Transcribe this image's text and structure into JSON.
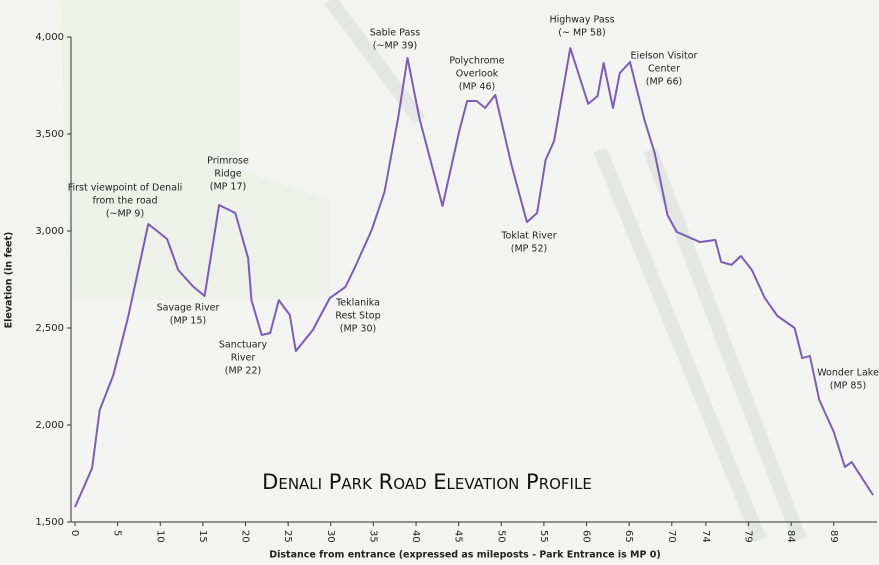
{
  "chart_data": {
    "type": "line",
    "title": "Denali Park Road Elevation Profile",
    "x_label": "Distance from entrance (expressed as mileposts - Park Entrance is MP 0)",
    "y_label": "Elevation (in feet)",
    "color": "#7b5cb8",
    "x": [
      0,
      2.0,
      2.9,
      4.5,
      6.2,
      8.6,
      10.8,
      12.1,
      13.8,
      15.2,
      16.9,
      18.8,
      20.3,
      20.7,
      21.9,
      22.9,
      23.9,
      25.2,
      25.9,
      27.9,
      29.9,
      31.7,
      32.8,
      34.8,
      36.3,
      37.9,
      39.0,
      40.4,
      43.1,
      45.1,
      46.0,
      47.1,
      48.1,
      49.3,
      51.2,
      53.0,
      54.2,
      55.2,
      56.2,
      58.1,
      60.2,
      61.3,
      62.0,
      63.1,
      63.9,
      65.1,
      66.8,
      68.0,
      69.5,
      70.6,
      73.3,
      75.1,
      75.8,
      77.0,
      78.1,
      79.4,
      80.9,
      82.4,
      84.4,
      85.3,
      86.2,
      87.3,
      89.0,
      90.3,
      91.1,
      93.6
    ],
    "values": [
      1577,
      1778,
      2077,
      2258,
      2552,
      3036,
      2959,
      2799,
      2716,
      2665,
      3134,
      3093,
      2861,
      2644,
      2464,
      2474,
      2644,
      2567,
      2381,
      2490,
      2655,
      2711,
      2809,
      3005,
      3201,
      3582,
      3892,
      3582,
      3129,
      3521,
      3670,
      3670,
      3634,
      3701,
      3340,
      3046,
      3093,
      3366,
      3464,
      3943,
      3655,
      3696,
      3866,
      3634,
      3814,
      3871,
      3572,
      3402,
      3082,
      2995,
      2943,
      2954,
      2840,
      2825,
      2871,
      2799,
      2655,
      2562,
      2500,
      2345,
      2356,
      2129,
      1964,
      1784,
      1809,
      1639
    ],
    "xlim": [
      0,
      93.6
    ],
    "xticks": [
      0,
      5,
      10,
      15,
      20,
      25,
      30,
      35,
      40,
      45,
      50,
      55,
      60,
      65,
      70,
      74,
      79,
      84,
      89
    ],
    "ylim": [
      1500,
      4000
    ],
    "yticks": [
      {
        "value": 1500,
        "label": "1,500"
      },
      {
        "value": 2000,
        "label": "2,000"
      },
      {
        "value": 2500,
        "label": "2,500"
      },
      {
        "value": 3000,
        "label": "3,000"
      },
      {
        "value": 3500,
        "label": "3,500"
      },
      {
        "value": 4000,
        "label": "4,000"
      }
    ],
    "annotations": [
      [
        "First viewpoint of Denali",
        "from the road",
        "(~MP 9)"
      ],
      [
        "Primrose",
        "Ridge",
        "(MP 17)"
      ],
      [
        "Savage River",
        "(MP 15)"
      ],
      [
        "Sanctuary",
        "River",
        "(MP 22)"
      ],
      [
        "Teklanika",
        "Rest Stop",
        "(MP 30)"
      ],
      [
        "Sable Pass",
        "(~MP 39)"
      ],
      [
        "Polychrome",
        "Overlook",
        "(MP 46)"
      ],
      [
        "Toklat River",
        "(MP 52)"
      ],
      [
        "Highway Pass",
        "(~ MP 58)"
      ],
      [
        "Eielson Visitor",
        "Center",
        "(MP 66)"
      ],
      [
        "Wonder Lake",
        "(MP 85)"
      ]
    ]
  }
}
